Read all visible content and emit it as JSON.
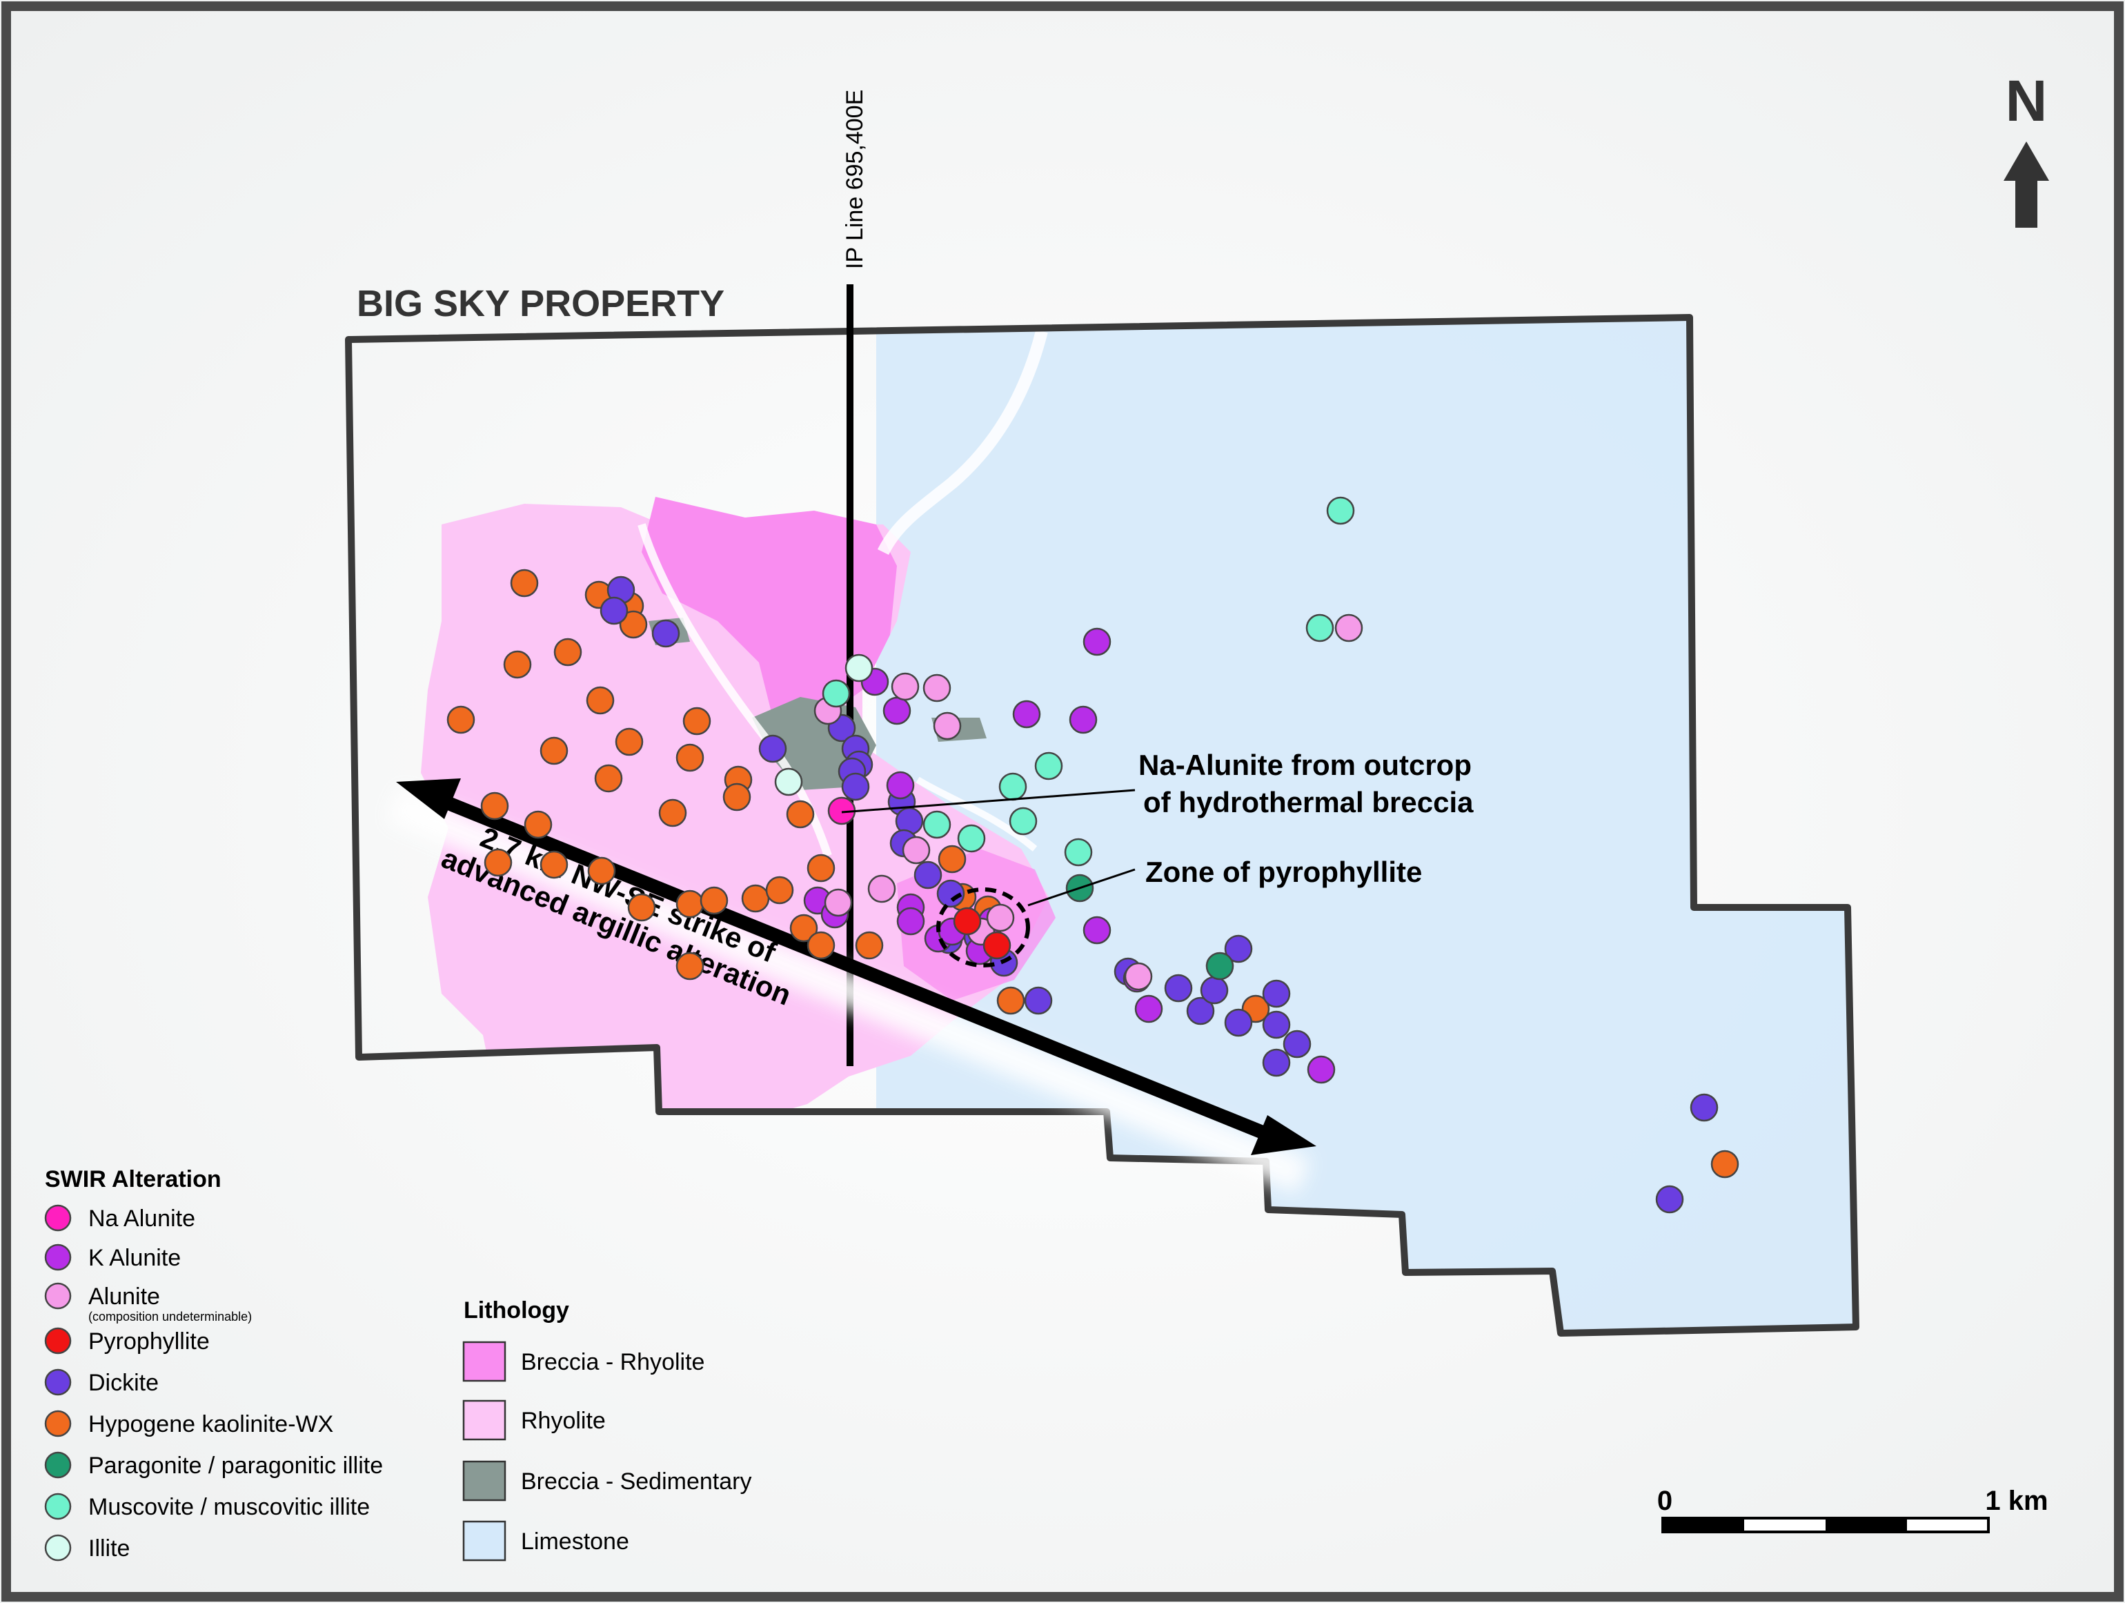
{
  "map": {
    "title": "BIG SKY PROPERTY",
    "ip_line_label": "IP Line 695,400E",
    "north_label": "N",
    "strike_label_line1": "2.7 km NW-SE strike of",
    "strike_label_line2": "advanced argillic alteration",
    "callout_na_alunite_line1": "Na-Alunite from outcrop",
    "callout_na_alunite_line2": "of hydrothermal breccia",
    "callout_pyrophyllite": "Zone of pyrophyllite"
  },
  "scale_bar": {
    "start_label": "0",
    "end_label": "1 km"
  },
  "swir_legend": {
    "title": "SWIR Alteration",
    "items": [
      {
        "key": "na_alunite",
        "label": "Na Alunite",
        "color": "#ff1fbf"
      },
      {
        "key": "k_alunite",
        "label": "K Alunite",
        "color": "#b72ee8"
      },
      {
        "key": "alunite",
        "label": "Alunite",
        "sublabel": "(composition undeterminable)",
        "color": "#f59be8"
      },
      {
        "key": "pyrophyllite",
        "label": "Pyrophyllite",
        "color": "#f01414"
      },
      {
        "key": "dickite",
        "label": "Dickite",
        "color": "#6a3ee0"
      },
      {
        "key": "kaolinite",
        "label": "Hypogene kaolinite-WX",
        "color": "#f06a1e"
      },
      {
        "key": "paragonite",
        "label": "Paragonite / paragonitic illite",
        "color": "#1f9a6e"
      },
      {
        "key": "muscovite",
        "label": "Muscovite / muscovitic illite",
        "color": "#6ff2cc"
      },
      {
        "key": "illite",
        "label": "Illite",
        "color": "#d6fbf1"
      }
    ]
  },
  "lithology_legend": {
    "title": "Lithology",
    "items": [
      {
        "key": "breccia_rhyolite",
        "label": "Breccia - Rhyolite",
        "color": "#f98df0"
      },
      {
        "key": "rhyolite",
        "label": "Rhyolite",
        "color": "#fcc6f6"
      },
      {
        "key": "breccia_sedimentary",
        "label": "Breccia - Sedimentary",
        "color": "#899a95"
      },
      {
        "key": "limestone",
        "label": "Limestone",
        "color": "#d5e9fa"
      }
    ]
  }
}
